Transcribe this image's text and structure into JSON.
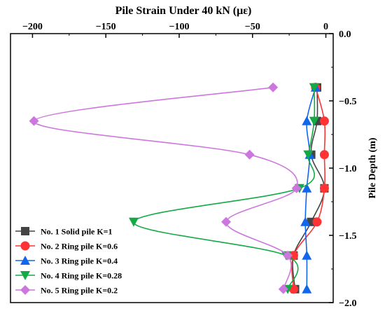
{
  "chart_data": {
    "type": "line",
    "title": "Pile Strain Under 40 kN (με)",
    "xlabel": "",
    "ylabel": "Pile Depth (m)",
    "xlim": [
      -215,
      5
    ],
    "ylim": [
      0.0,
      -2.0
    ],
    "x_ticks": [
      -200,
      -150,
      -100,
      -50,
      0
    ],
    "x_tick_labels": [
      "−200",
      "−150",
      "−100",
      "−50",
      "0"
    ],
    "y_ticks": [
      0.0,
      -0.5,
      -1.0,
      -1.5,
      -2.0
    ],
    "y_tick_labels": [
      "0.0",
      "−0.5",
      "−1.0",
      "−1.5",
      "−2.0"
    ],
    "x_axis_position": "top",
    "y_axis_position": "right",
    "grid": false,
    "legend_position": "bottom-left",
    "series": [
      {
        "name": "No. 1 Solid pile K=1",
        "color": "#444444",
        "marker": "square",
        "points": [
          {
            "x": -6,
            "y": -0.4
          },
          {
            "x": -6,
            "y": -0.65
          },
          {
            "x": -10,
            "y": -0.9
          },
          {
            "x": -1,
            "y": -1.15
          },
          {
            "x": -10,
            "y": -1.4
          },
          {
            "x": -22,
            "y": -1.65
          },
          {
            "x": -21,
            "y": -1.9
          }
        ]
      },
      {
        "name": "No. 2 Ring pile K=0.6",
        "color": "#ff3333",
        "marker": "circle",
        "points": [
          {
            "x": -7,
            "y": -0.4
          },
          {
            "x": -1,
            "y": -0.65
          },
          {
            "x": -1,
            "y": -0.9
          },
          {
            "x": -1,
            "y": -1.15
          },
          {
            "x": -6,
            "y": -1.4
          },
          {
            "x": -22,
            "y": -1.65
          },
          {
            "x": -22,
            "y": -1.9
          }
        ]
      },
      {
        "name": "No. 3 Ring pile K=0.4",
        "color": "#1166ee",
        "marker": "triangle-up",
        "points": [
          {
            "x": -7,
            "y": -0.4
          },
          {
            "x": -13,
            "y": -0.65
          },
          {
            "x": -11,
            "y": -0.9
          },
          {
            "x": -13,
            "y": -1.15
          },
          {
            "x": -14,
            "y": -1.4
          },
          {
            "x": -13,
            "y": -1.65
          },
          {
            "x": -13,
            "y": -1.9
          }
        ]
      },
      {
        "name": "No. 4 Ring pile K=0.28",
        "color": "#11aa44",
        "marker": "triangle-down",
        "points": [
          {
            "x": -8,
            "y": -0.4
          },
          {
            "x": -8,
            "y": -0.65
          },
          {
            "x": -12,
            "y": -0.9
          },
          {
            "x": -18,
            "y": -1.15
          },
          {
            "x": -131,
            "y": -1.4
          },
          {
            "x": -27,
            "y": -1.65
          },
          {
            "x": -26,
            "y": -1.9
          }
        ]
      },
      {
        "name": "No. 5 Ring pile K=0.2",
        "color": "#cc77dd",
        "marker": "diamond",
        "points": [
          {
            "x": -36,
            "y": -0.4
          },
          {
            "x": -199,
            "y": -0.65
          },
          {
            "x": -52,
            "y": -0.9
          },
          {
            "x": -20,
            "y": -1.15
          },
          {
            "x": -68,
            "y": -1.4
          },
          {
            "x": -26,
            "y": -1.65
          },
          {
            "x": -29,
            "y": -1.9
          }
        ]
      }
    ]
  }
}
